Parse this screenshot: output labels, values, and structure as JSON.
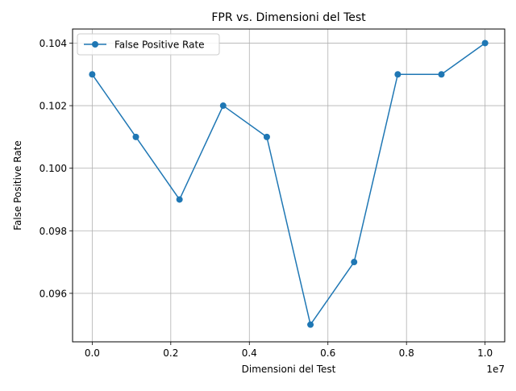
{
  "chart_data": {
    "type": "line",
    "title": "FPR vs. Dimensioni del Test",
    "xlabel": "Dimensioni del Test",
    "ylabel": "False Positive Rate",
    "x_offset_label": "1e7",
    "xlim": [
      -500000,
      10500000
    ],
    "ylim": [
      0.09445,
      0.10445
    ],
    "x_ticks": [
      0,
      2000000,
      4000000,
      6000000,
      8000000,
      10000000
    ],
    "x_tick_labels": [
      "0.0",
      "0.2",
      "0.4",
      "0.6",
      "0.8",
      "1.0"
    ],
    "y_ticks": [
      0.096,
      0.098,
      0.1,
      0.102,
      0.104
    ],
    "y_tick_labels": [
      "0.096",
      "0.098",
      "0.100",
      "0.102",
      "0.104"
    ],
    "grid": true,
    "legend_position": "upper-left",
    "series": [
      {
        "name": "False Positive Rate",
        "color": "#1f77b4",
        "marker": "circle",
        "x": [
          10,
          1111120,
          2222230,
          3333340,
          4444450,
          5555560,
          6666670,
          7777780,
          8888890,
          10000000
        ],
        "y": [
          0.103,
          0.101,
          0.099,
          0.102,
          0.101,
          0.095,
          0.097,
          0.103,
          0.103,
          0.104
        ]
      }
    ]
  }
}
